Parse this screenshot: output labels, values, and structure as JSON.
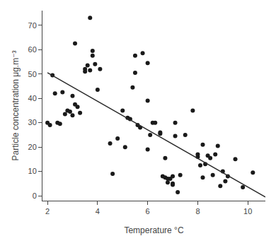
{
  "chart_data": {
    "type": "scatter",
    "xlabel": "Temperature °C",
    "ylabel": "Particle concentration μg.m⁻³",
    "series": [
      {
        "type": "scatter",
        "marker": "circle",
        "color": "#1a1a1a",
        "x": [
          2.0,
          2.1,
          2.2,
          2.3,
          2.4,
          2.5,
          2.6,
          2.7,
          2.8,
          2.9,
          3.0,
          3.0,
          3.1,
          3.1,
          3.2,
          3.3,
          3.5,
          3.5,
          3.6,
          3.7,
          3.7,
          3.8,
          3.8,
          3.9,
          4.0,
          4.1,
          4.5,
          4.6,
          4.8,
          5.0,
          5.1,
          5.2,
          5.3,
          5.4,
          5.5,
          5.5,
          5.6,
          5.7,
          5.8,
          6.0,
          6.0,
          6.0,
          6.1,
          6.2,
          6.3,
          6.5,
          6.5,
          6.6,
          6.7,
          6.7,
          6.8,
          6.8,
          6.9,
          7.0,
          7.0,
          7.0,
          7.1,
          7.1,
          7.2,
          7.3,
          7.5,
          7.8,
          8.0,
          8.0,
          8.1,
          8.2,
          8.2,
          8.3,
          8.4,
          8.5,
          8.6,
          8.7,
          8.8,
          8.9,
          9.0,
          9.1,
          9.2,
          9.5,
          9.8,
          10.2
        ],
        "values": [
          30.0,
          29.0,
          49.5,
          42.0,
          30.0,
          29.5,
          42.5,
          33.5,
          35.0,
          34.5,
          33.0,
          41.0,
          62.5,
          37.5,
          36.5,
          34.0,
          51.0,
          52.0,
          53.5,
          73.0,
          51.5,
          59.5,
          57.5,
          54.0,
          43.5,
          52.0,
          21.5,
          9.0,
          23.5,
          35.0,
          20.0,
          32.0,
          31.5,
          44.5,
          57.5,
          50.5,
          29.0,
          28.0,
          58.5,
          54.5,
          39.0,
          19.0,
          25.0,
          30.0,
          30.0,
          25.5,
          26.0,
          8.0,
          15.5,
          7.5,
          7.0,
          5.5,
          7.0,
          8.0,
          5.0,
          4.5,
          30.0,
          24.5,
          1.5,
          8.5,
          25.0,
          35.0,
          16.0,
          17.0,
          12.5,
          21.0,
          7.5,
          13.0,
          16.5,
          15.5,
          8.5,
          17.0,
          20.5,
          4.0,
          10.0,
          6.0,
          8.0,
          15.0,
          3.5,
          9.5
        ]
      },
      {
        "type": "line",
        "line_style": "solid",
        "color": "#2a2a2a",
        "x": [
          2.0,
          10.7
        ],
        "values": [
          50.5,
          -0.5
        ]
      }
    ],
    "xlim": [
      1.8,
      10.7
    ],
    "ylim": [
      -2,
      76
    ],
    "xticks": [
      2,
      4,
      6,
      8,
      10
    ],
    "yticks": [
      0,
      10,
      20,
      30,
      40,
      50,
      60,
      70
    ],
    "grid": false
  }
}
